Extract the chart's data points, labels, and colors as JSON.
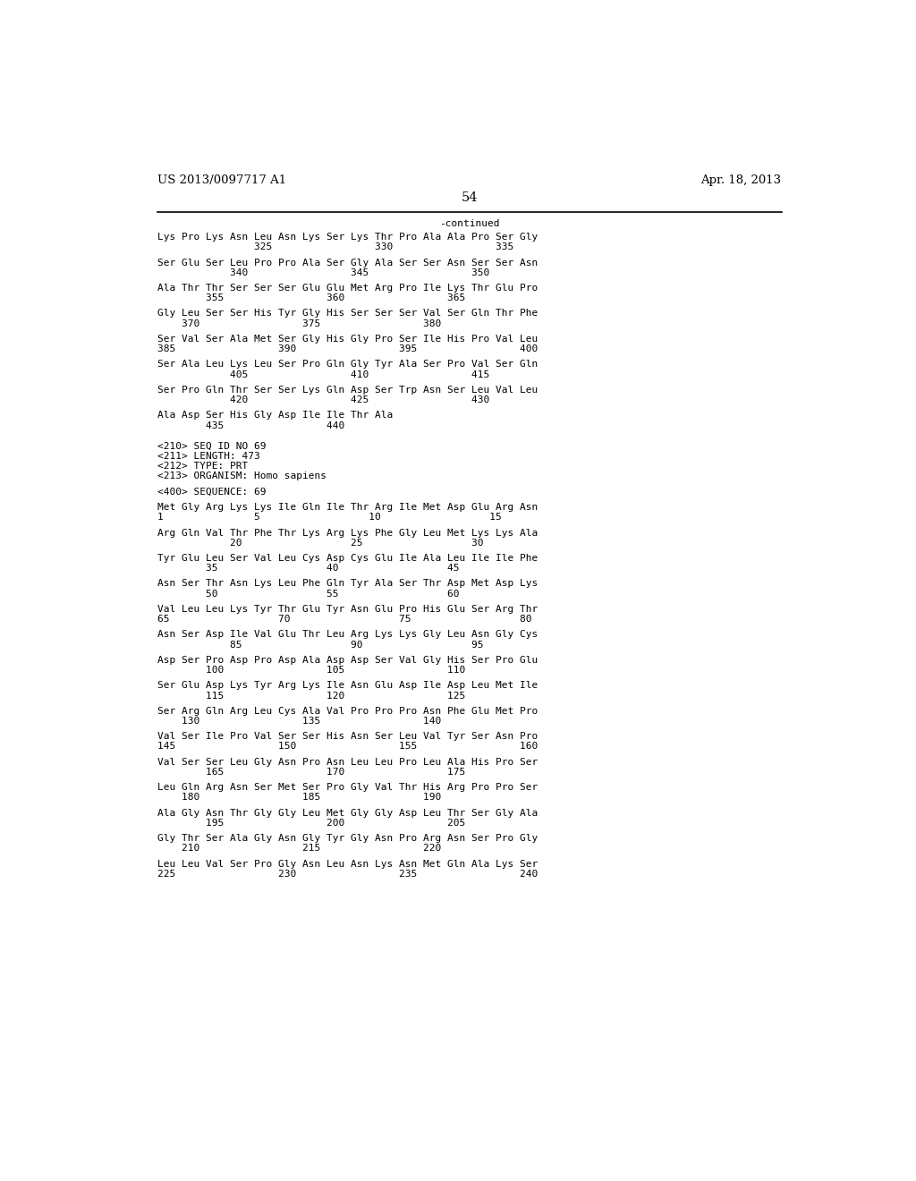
{
  "header_left": "US 2013/0097717 A1",
  "header_right": "Apr. 18, 2013",
  "page_number": "54",
  "continued_label": "-continued",
  "background_color": "#ffffff",
  "text_color": "#000000",
  "mono_font_size": 8.0,
  "header_font_size": 9.5,
  "content_lines": [
    "Lys Pro Lys Asn Leu Asn Lys Ser Lys Thr Pro Ala Ala Pro Ser Gly",
    "                325                 330                 335",
    "",
    "Ser Glu Ser Leu Pro Pro Ala Ser Gly Ala Ser Ser Asn Ser Ser Asn",
    "            340                 345                 350",
    "",
    "Ala Thr Thr Ser Ser Ser Glu Glu Met Arg Pro Ile Lys Thr Glu Pro",
    "        355                 360                 365",
    "",
    "Gly Leu Ser Ser His Tyr Gly His Ser Ser Ser Val Ser Gln Thr Phe",
    "    370                 375                 380",
    "",
    "Ser Val Ser Ala Met Ser Gly His Gly Pro Ser Ile His Pro Val Leu",
    "385                 390                 395                 400",
    "",
    "Ser Ala Leu Lys Leu Ser Pro Gln Gly Tyr Ala Ser Pro Val Ser Gln",
    "            405                 410                 415",
    "",
    "Ser Pro Gln Thr Ser Ser Lys Gln Asp Ser Trp Asn Ser Leu Val Leu",
    "            420                 425                 430",
    "",
    "Ala Asp Ser His Gly Asp Ile Ile Thr Ala",
    "        435                 440",
    "",
    "",
    "<210> SEQ ID NO 69",
    "<211> LENGTH: 473",
    "<212> TYPE: PRT",
    "<213> ORGANISM: Homo sapiens",
    "",
    "<400> SEQUENCE: 69",
    "",
    "Met Gly Arg Lys Lys Ile Gln Ile Thr Arg Ile Met Asp Glu Arg Asn",
    "1               5                  10                  15",
    "",
    "Arg Gln Val Thr Phe Thr Lys Arg Lys Phe Gly Leu Met Lys Lys Ala",
    "            20                  25                  30",
    "",
    "Tyr Glu Leu Ser Val Leu Cys Asp Cys Glu Ile Ala Leu Ile Ile Phe",
    "        35                  40                  45",
    "",
    "Asn Ser Thr Asn Lys Leu Phe Gln Tyr Ala Ser Thr Asp Met Asp Lys",
    "        50                  55                  60",
    "",
    "Val Leu Leu Lys Tyr Thr Glu Tyr Asn Glu Pro His Glu Ser Arg Thr",
    "65                  70                  75                  80",
    "",
    "Asn Ser Asp Ile Val Glu Thr Leu Arg Lys Lys Gly Leu Asn Gly Cys",
    "            85                  90                  95",
    "",
    "Asp Ser Pro Asp Pro Asp Ala Asp Asp Ser Val Gly His Ser Pro Glu",
    "        100                 105                 110",
    "",
    "Ser Glu Asp Lys Tyr Arg Lys Ile Asn Glu Asp Ile Asp Leu Met Ile",
    "        115                 120                 125",
    "",
    "Ser Arg Gln Arg Leu Cys Ala Val Pro Pro Pro Asn Phe Glu Met Pro",
    "    130                 135                 140",
    "",
    "Val Ser Ile Pro Val Ser Ser His Asn Ser Leu Val Tyr Ser Asn Pro",
    "145                 150                 155                 160",
    "",
    "Val Ser Ser Leu Gly Asn Pro Asn Leu Leu Pro Leu Ala His Pro Ser",
    "        165                 170                 175",
    "",
    "Leu Gln Arg Asn Ser Met Ser Pro Gly Val Thr His Arg Pro Pro Ser",
    "    180                 185                 190",
    "",
    "Ala Gly Asn Thr Gly Gly Leu Met Gly Gly Asp Leu Thr Ser Gly Ala",
    "        195                 200                 205",
    "",
    "Gly Thr Ser Ala Gly Asn Gly Tyr Gly Asn Pro Arg Asn Ser Pro Gly",
    "    210                 215                 220",
    "",
    "Leu Leu Val Ser Pro Gly Asn Leu Asn Lys Asn Met Gln Ala Lys Ser",
    "225                 230                 235                 240"
  ]
}
